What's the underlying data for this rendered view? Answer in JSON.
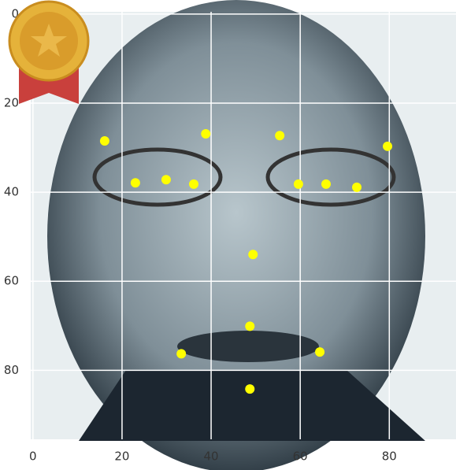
{
  "chart_data": {
    "type": "scatter",
    "x": [
      16.1,
      38.8,
      55.4,
      79.6,
      23.0,
      29.9,
      36.1,
      59.6,
      65.8,
      72.7,
      49.4,
      48.7,
      33.3,
      64.4,
      48.7
    ],
    "y": [
      28.5,
      26.9,
      27.3,
      29.7,
      37.9,
      37.2,
      38.2,
      38.2,
      38.2,
      38.9,
      54.0,
      70.1,
      76.3,
      75.9,
      84.2
    ],
    "color": "#ffff00",
    "xlim": [
      -0.5,
      95.5
    ],
    "ylim": [
      95.5,
      -0.5
    ],
    "xticks": [
      0,
      20,
      40,
      60,
      80
    ],
    "yticks": [
      0,
      20,
      40,
      60,
      80
    ],
    "grid": true
  }
}
